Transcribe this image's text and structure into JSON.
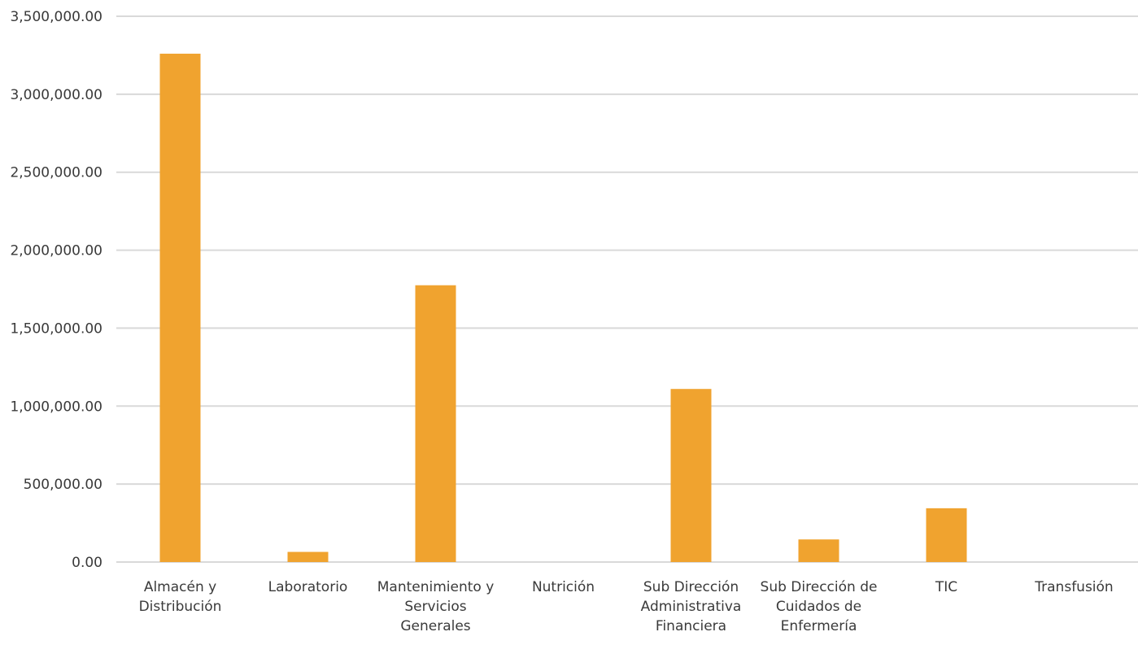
{
  "colors": {
    "bar": "#F0A32F",
    "grid": "#D9D9D9",
    "text": "#3A3A3A"
  },
  "chart_data": {
    "type": "bar",
    "categories": [
      [
        "Almacén y",
        "Distribución"
      ],
      [
        "Laboratorio"
      ],
      [
        "Mantenimiento y",
        "Servicios",
        "Generales"
      ],
      [
        "Nutrición"
      ],
      [
        "Sub Dirección",
        "Administrativa",
        "Financiera"
      ],
      [
        "Sub Dirección de",
        "Cuidados de",
        "Enfermería"
      ],
      [
        "TIC"
      ],
      [
        "Transfusión"
      ]
    ],
    "values": [
      3260000,
      65000,
      1775000,
      0,
      1110000,
      145000,
      345000,
      0
    ],
    "ylim": [
      0,
      3500000
    ],
    "yticks": [
      0,
      500000,
      1000000,
      1500000,
      2000000,
      2500000,
      3000000,
      3500000
    ],
    "ytick_labels": [
      "0.00",
      "500,000.00",
      "1,000,000.00",
      "1,500,000.00",
      "2,000,000.00",
      "2,500,000.00",
      "3,000,000.00",
      "3,500,000.00"
    ],
    "grid": true,
    "legend": "none",
    "title": "",
    "xlabel": "",
    "ylabel": ""
  }
}
